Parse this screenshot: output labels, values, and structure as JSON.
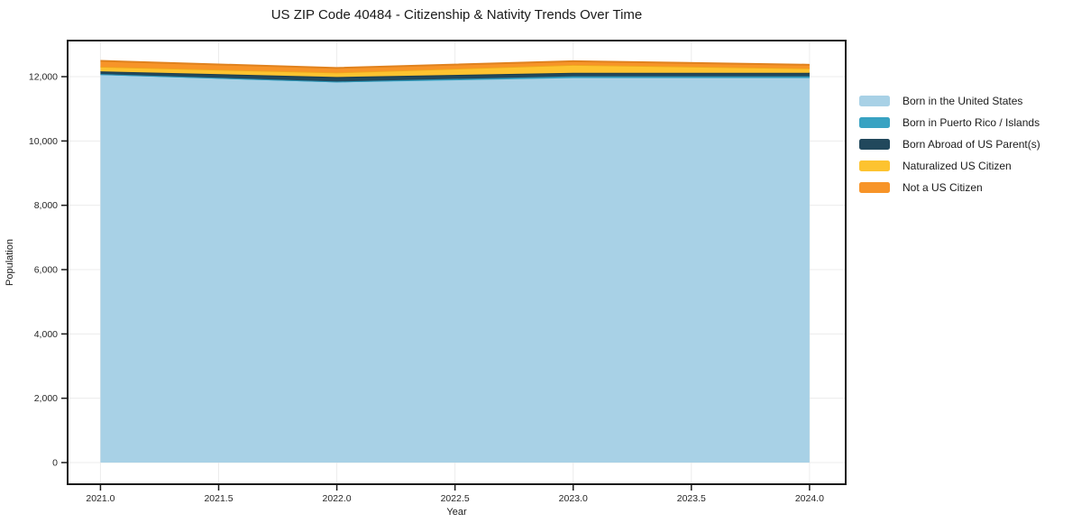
{
  "title": "US ZIP Code 40484 - Citizenship & Nativity Trends Over Time",
  "chart_data": {
    "type": "area",
    "stacked": true,
    "title": "US ZIP Code 40484 - Citizenship & Nativity Trends Over Time",
    "xlabel": "Year",
    "ylabel": "Population",
    "x": [
      2021,
      2022,
      2023,
      2024
    ],
    "series": [
      {
        "name": "Born in the United States",
        "color": "#A8D1E6",
        "line_color": "#A8D1E6",
        "values": [
          12050,
          11820,
          11955,
          11955
        ]
      },
      {
        "name": "Born in Puerto Rico / Islands",
        "color": "#38A2C2",
        "line_color": "#2B93B4",
        "values": [
          30,
          30,
          55,
          55
        ]
      },
      {
        "name": "Born Abroad of US Parent(s)",
        "color": "#21485C",
        "line_color": "#1B3D4E",
        "values": [
          85,
          140,
          110,
          110
        ]
      },
      {
        "name": "Naturalized US Citizen",
        "color": "#FDC330",
        "line_color": "#F0A51D",
        "values": [
          145,
          140,
          250,
          140
        ]
      },
      {
        "name": "Not a US Citizen",
        "color": "#F79428",
        "line_color": "#E0821E",
        "values": [
          180,
          140,
          110,
          110
        ]
      }
    ],
    "x_ticks": {
      "values": [
        2021.0,
        2021.5,
        2022.0,
        2022.5,
        2023.0,
        2023.5,
        2024.0
      ],
      "labels": [
        "2021.0",
        "2021.5",
        "2022.0",
        "2022.5",
        "2023.0",
        "2023.5",
        "2024.0"
      ]
    },
    "y_ticks": {
      "values": [
        0,
        2000,
        4000,
        6000,
        8000,
        10000,
        12000
      ],
      "labels": [
        "0",
        "2,000",
        "4,000",
        "6,000",
        "8,000",
        "10,000",
        "12,000"
      ]
    },
    "xlim": [
      2020.861,
      2024.153
    ],
    "ylim": [
      -673,
      13122
    ],
    "grid": true,
    "legend_position": "right-outside"
  },
  "colors": {
    "background": "#ffffff",
    "grid": "#ececec",
    "axis": "#1a1a1a",
    "tick_text": "#262626",
    "title_text": "#1a1a1a"
  }
}
